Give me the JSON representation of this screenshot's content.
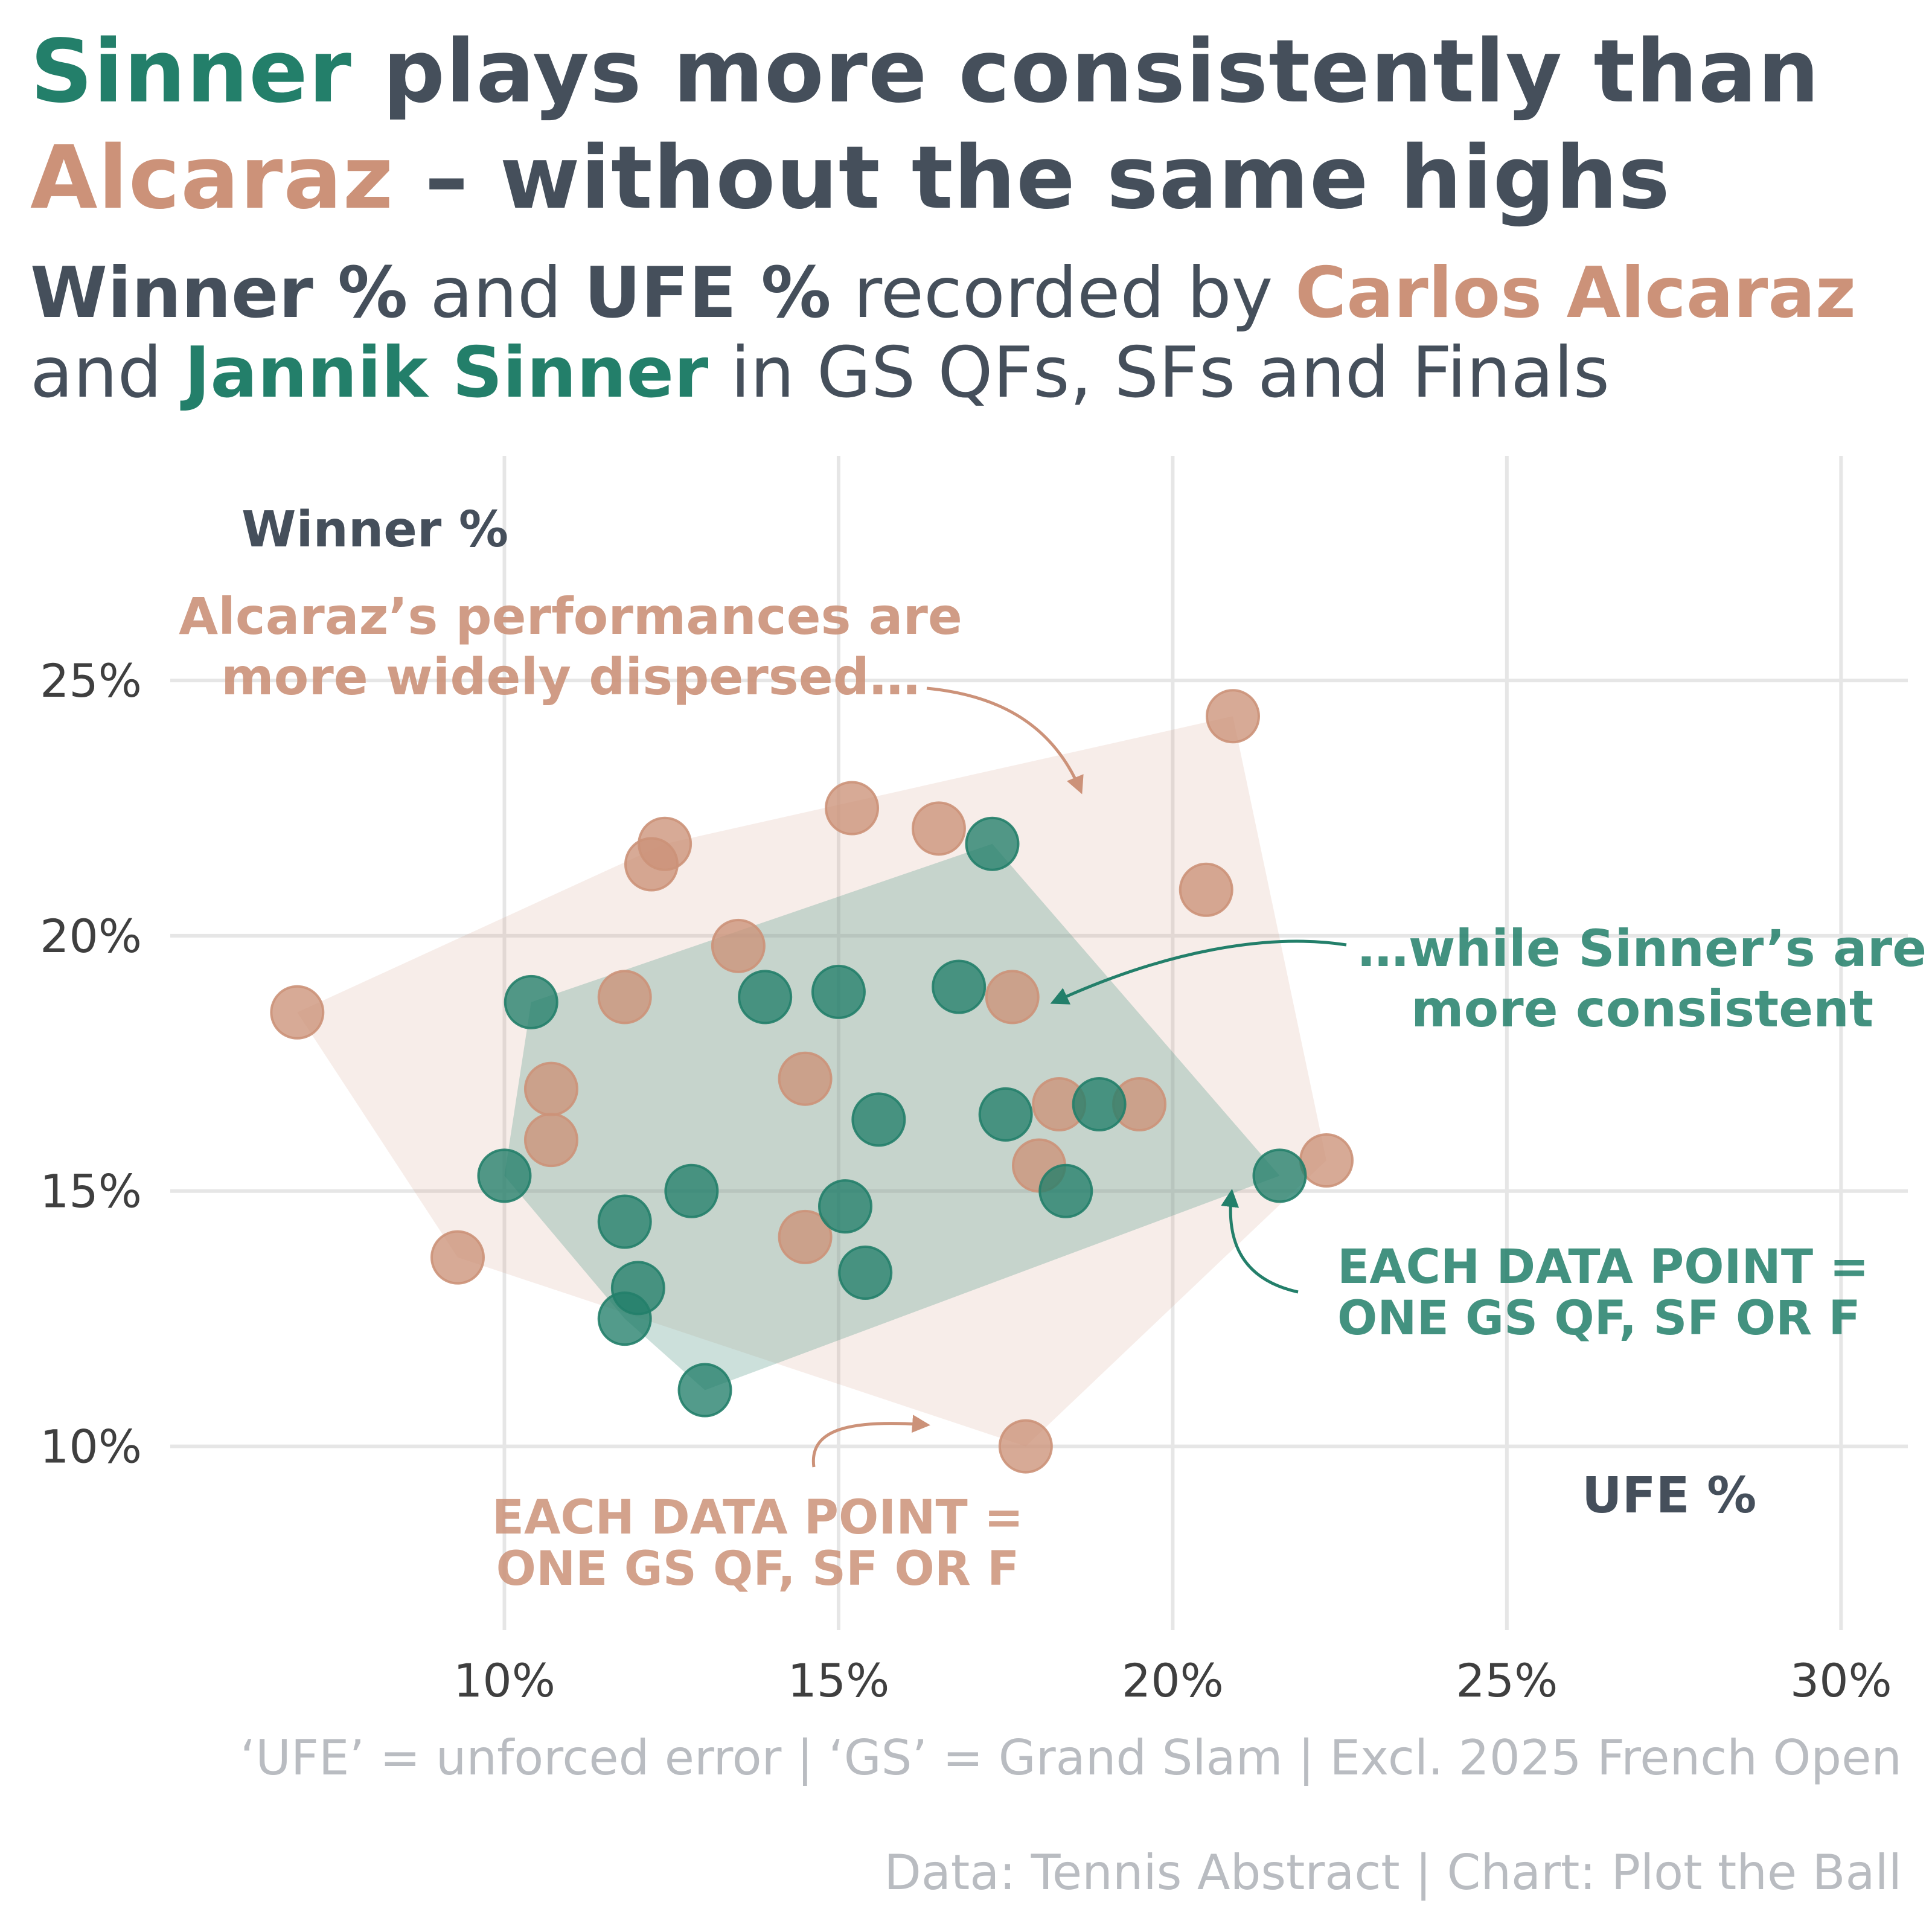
{
  "title": {
    "line1_highlight": "Sinner",
    "line1_rest": " plays more consistently than",
    "line2_highlight": "Alcaraz",
    "line2_rest": " – without the same highs"
  },
  "subtitle": {
    "winner_label": "Winner %",
    "and1": " and ",
    "ufe_label": "UFE %",
    "recorded_by": " recorded by ",
    "alcaraz_name": "Carlos Alcaraz",
    "and2": "and ",
    "sinner_name": "Jannik Sinner",
    "rest": " in GS QFs, SFs and Finals"
  },
  "colors": {
    "sinner": "#237f6a",
    "alcaraz": "#cc9279",
    "text": "#454f5b",
    "footnote": "#b9bcc1",
    "grid": "#e6e6e6"
  },
  "annotations": {
    "alcaraz_line1": "Alcaraz’s performances are",
    "alcaraz_line2": "more widely dispersed…",
    "sinner_line1": "…while Sinner’s are",
    "sinner_line2": "more consistent",
    "sinner_note_line1": "EACH DATA POINT =",
    "sinner_note_line2": "ONE GS QF, SF OR F",
    "alcaraz_note_line1": "EACH DATA POINT =",
    "alcaraz_note_line2": "ONE GS QF, SF OR F"
  },
  "footnotes": {
    "definitions": "‘UFE’ = unforced error | ‘GS’ = Grand Slam | Excl. 2025 French Open",
    "source": "Data: Tennis Abstract | Chart: Plot the Ball"
  },
  "chart_data": {
    "type": "scatter",
    "xlabel": "UFE %",
    "ylabel": "Winner %",
    "xlim": [
      5,
      31
    ],
    "ylim": [
      6.4,
      29.4
    ],
    "x_ticks": [
      10,
      15,
      20,
      25,
      30
    ],
    "y_ticks": [
      10,
      15,
      20,
      25
    ],
    "x_tick_labels": [
      "10%",
      "15%",
      "20%",
      "25%",
      "30%"
    ],
    "y_tick_labels": [
      "10%",
      "15%",
      "20%",
      "25%"
    ],
    "grid": true,
    "series": [
      {
        "name": "Carlos Alcaraz",
        "color": "#cc9279",
        "hull": true,
        "points": [
          {
            "x": 6.9,
            "y": 18.5
          },
          {
            "x": 9.3,
            "y": 13.7
          },
          {
            "x": 10.7,
            "y": 17.0
          },
          {
            "x": 10.7,
            "y": 16.0
          },
          {
            "x": 11.8,
            "y": 18.8
          },
          {
            "x": 12.2,
            "y": 21.4
          },
          {
            "x": 12.4,
            "y": 21.8
          },
          {
            "x": 13.5,
            "y": 19.8
          },
          {
            "x": 14.5,
            "y": 17.2
          },
          {
            "x": 14.5,
            "y": 14.1
          },
          {
            "x": 15.2,
            "y": 22.5
          },
          {
            "x": 16.5,
            "y": 22.1
          },
          {
            "x": 17.6,
            "y": 18.8
          },
          {
            "x": 17.8,
            "y": 10.0
          },
          {
            "x": 18.0,
            "y": 15.5
          },
          {
            "x": 18.3,
            "y": 16.7
          },
          {
            "x": 19.5,
            "y": 16.7
          },
          {
            "x": 20.5,
            "y": 20.9
          },
          {
            "x": 20.9,
            "y": 24.3
          },
          {
            "x": 22.3,
            "y": 15.6
          }
        ]
      },
      {
        "name": "Jannik Sinner",
        "color": "#237f6a",
        "hull": true,
        "points": [
          {
            "x": 10.0,
            "y": 15.3
          },
          {
            "x": 10.4,
            "y": 18.7
          },
          {
            "x": 11.8,
            "y": 14.4
          },
          {
            "x": 12.0,
            "y": 13.1
          },
          {
            "x": 11.8,
            "y": 12.5
          },
          {
            "x": 12.8,
            "y": 15.0
          },
          {
            "x": 13.0,
            "y": 11.1
          },
          {
            "x": 13.9,
            "y": 18.8
          },
          {
            "x": 15.0,
            "y": 18.9
          },
          {
            "x": 15.1,
            "y": 14.7
          },
          {
            "x": 15.4,
            "y": 13.4
          },
          {
            "x": 15.6,
            "y": 16.4
          },
          {
            "x": 16.8,
            "y": 19.0
          },
          {
            "x": 17.3,
            "y": 21.8
          },
          {
            "x": 17.5,
            "y": 16.5
          },
          {
            "x": 18.4,
            "y": 15.0
          },
          {
            "x": 18.9,
            "y": 16.7
          },
          {
            "x": 21.6,
            "y": 15.3
          }
        ]
      }
    ]
  }
}
